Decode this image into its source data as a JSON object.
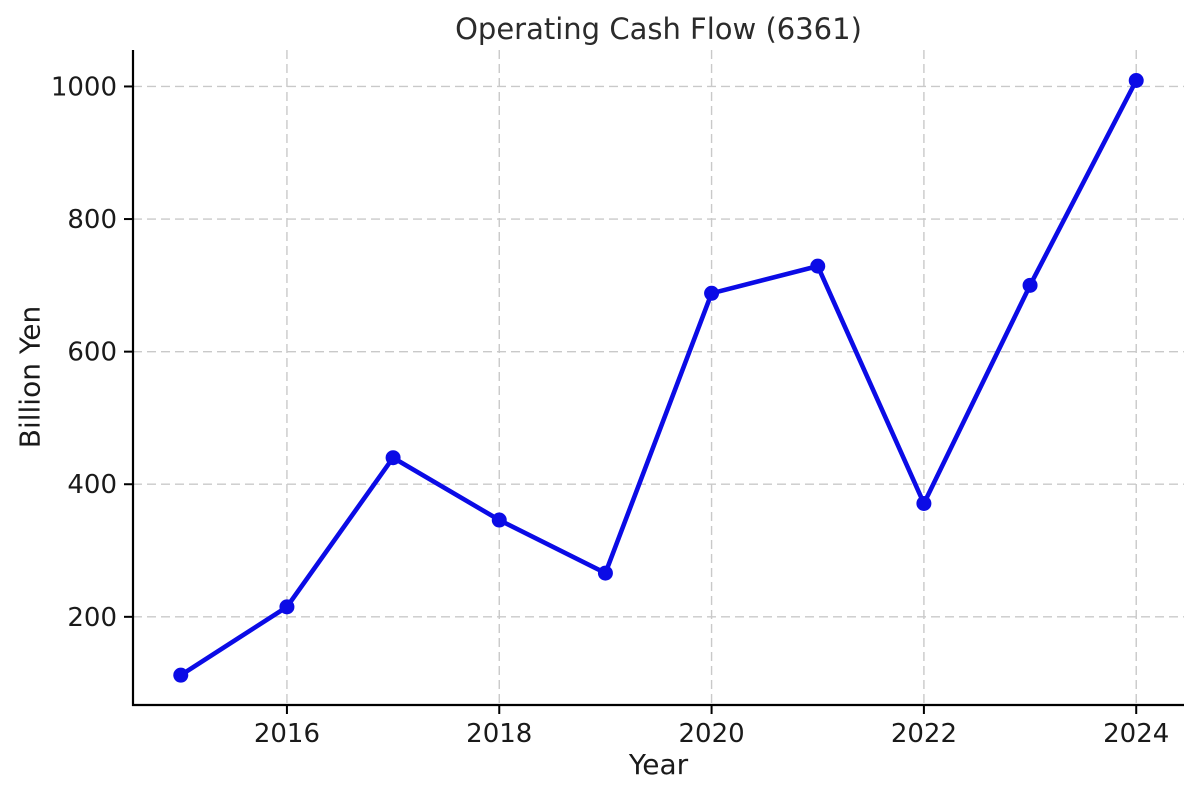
{
  "figure": {
    "background": "#ffffff"
  },
  "chart_data": {
    "type": "line",
    "title": "Operating Cash Flow (6361)",
    "xlabel": "Year",
    "ylabel": "Billion Yen",
    "x": [
      2015,
      2016,
      2017,
      2018,
      2019,
      2020,
      2021,
      2022,
      2023,
      2024
    ],
    "series": [
      {
        "name": "Operating Cash Flow",
        "values": [
          112,
          215,
          440,
          346,
          266,
          688,
          729,
          371,
          700,
          1009
        ]
      }
    ],
    "xticks": [
      2016,
      2018,
      2020,
      2022,
      2024
    ],
    "yticks": [
      200,
      400,
      600,
      800,
      1000
    ],
    "xlim": [
      2014.55,
      2024.45
    ],
    "ylim": [
      67,
      1055
    ],
    "grid": true,
    "grid_linestyle": "dashed",
    "legend_position": "none",
    "line_color": "#0b0be6",
    "marker": "circle",
    "grid_color": "#c9c9c9",
    "spine_color": "#000000",
    "tick_label_color": "#1a1a1a",
    "title_color": "#2b2b2b"
  }
}
